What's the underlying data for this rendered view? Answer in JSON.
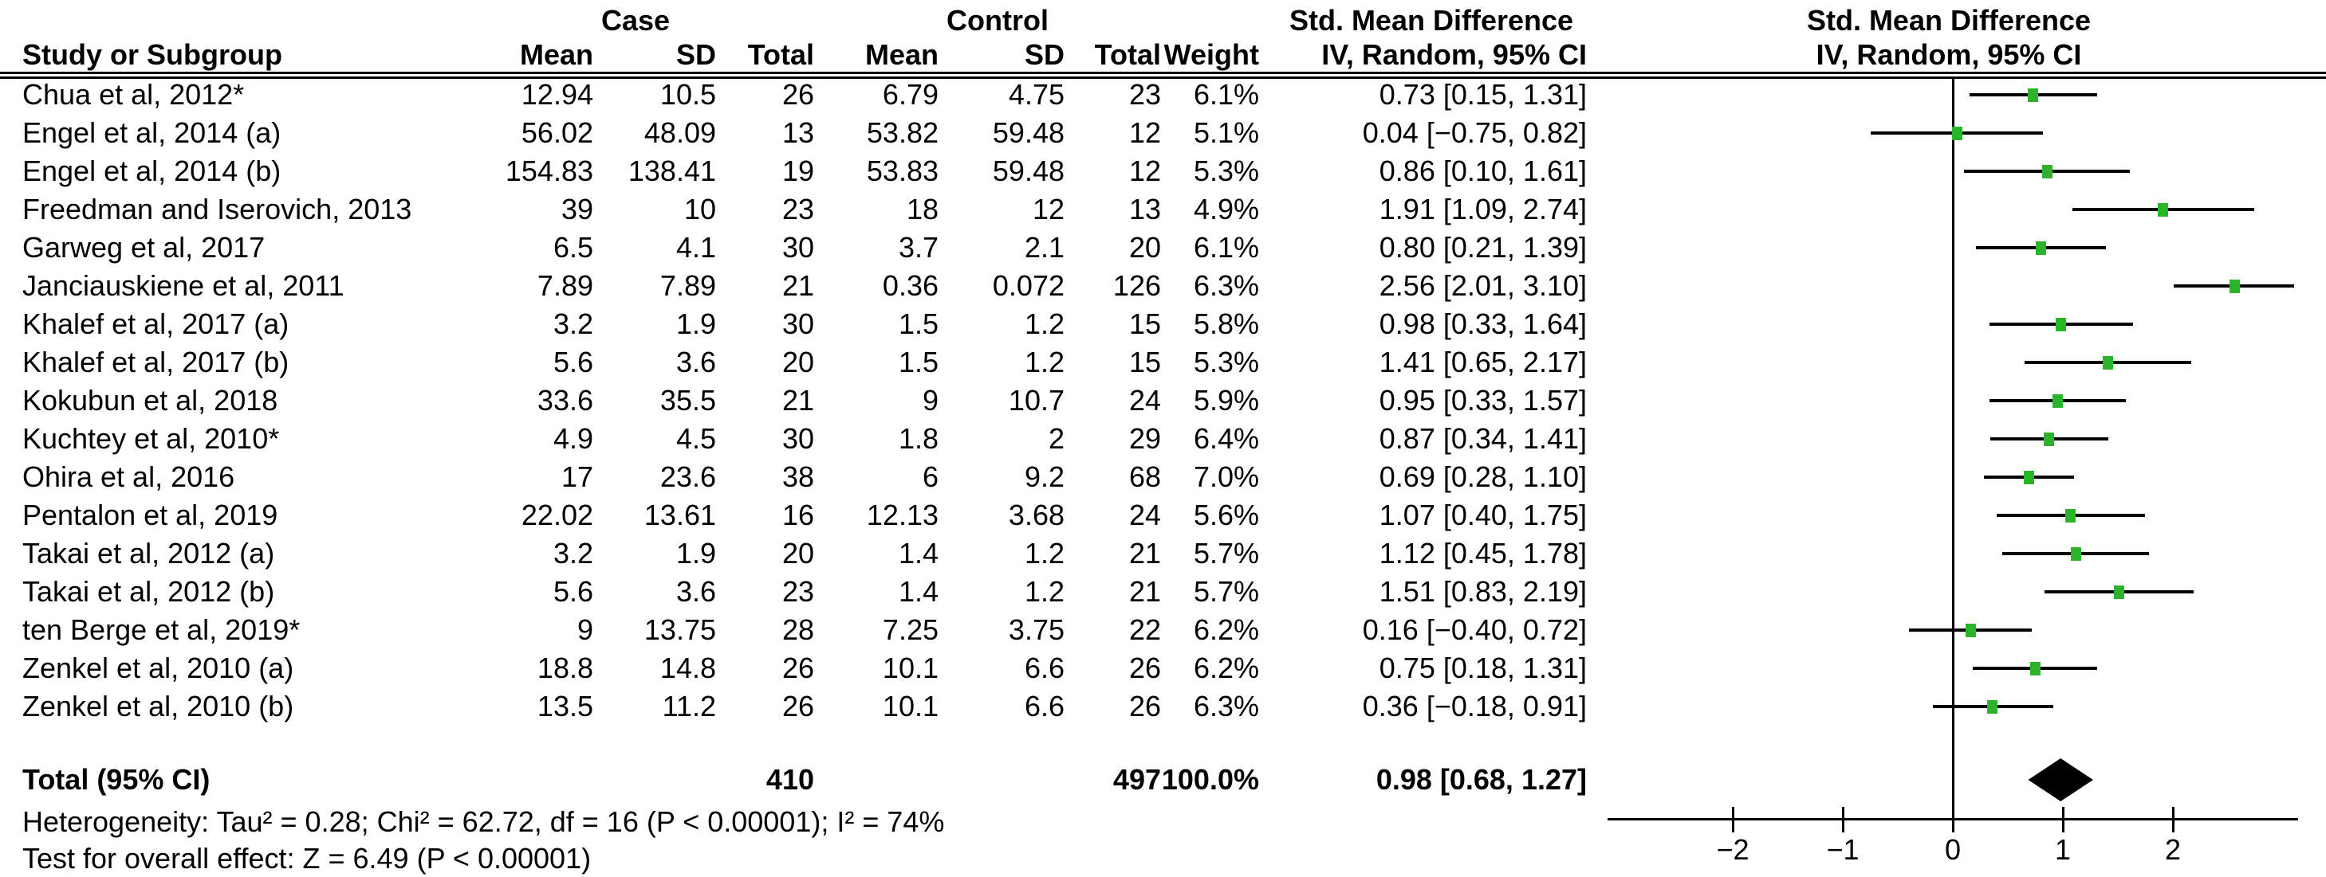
{
  "headers": {
    "group_case": "Case",
    "group_control": "Control",
    "smd_left": "Std. Mean Difference",
    "smd_right": "Std. Mean Difference",
    "study": "Study or Subgroup",
    "mean": "Mean",
    "sd": "SD",
    "total": "Total",
    "mean2": "Mean",
    "sd2": "SD",
    "total2": "Total",
    "weight": "Weight",
    "iv_left": "IV, Random, 95% CI",
    "iv_right": "IV, Random, 95% CI"
  },
  "chart_data": {
    "type": "forest",
    "effect_measure": "Std. Mean Difference",
    "model": "IV, Random, 95% CI",
    "axis": {
      "ticks": [
        -2,
        -1,
        0,
        1,
        2
      ],
      "tick_labels": [
        "−2",
        "−1",
        "0",
        "1",
        "2"
      ],
      "xmin": -3.14,
      "xmax": 3.14,
      "zero_line": 0
    },
    "marker_color": "#2bb32b",
    "ci_color": "#000000",
    "diamond_color": "#000000",
    "studies": [
      {
        "name": "Chua et al, 2012*",
        "case_mean": "12.94",
        "case_sd": "10.5",
        "case_total": "26",
        "control_mean": "6.79",
        "control_sd": "4.75",
        "control_total": "23",
        "weight": "6.1%",
        "smd": 0.73,
        "ci_low": 0.15,
        "ci_high": 1.31,
        "ci_text": "0.73 [0.15, 1.31]"
      },
      {
        "name": "Engel et al, 2014 (a)",
        "case_mean": "56.02",
        "case_sd": "48.09",
        "case_total": "13",
        "control_mean": "53.82",
        "control_sd": "59.48",
        "control_total": "12",
        "weight": "5.1%",
        "smd": 0.04,
        "ci_low": -0.75,
        "ci_high": 0.82,
        "ci_text": "0.04 [−0.75, 0.82]"
      },
      {
        "name": "Engel et al, 2014 (b)",
        "case_mean": "154.83",
        "case_sd": "138.41",
        "case_total": "19",
        "control_mean": "53.83",
        "control_sd": "59.48",
        "control_total": "12",
        "weight": "5.3%",
        "smd": 0.86,
        "ci_low": 0.1,
        "ci_high": 1.61,
        "ci_text": "0.86 [0.10, 1.61]"
      },
      {
        "name": "Freedman and Iserovich, 2013",
        "case_mean": "39",
        "case_sd": "10",
        "case_total": "23",
        "control_mean": "18",
        "control_sd": "12",
        "control_total": "13",
        "weight": "4.9%",
        "smd": 1.91,
        "ci_low": 1.09,
        "ci_high": 2.74,
        "ci_text": "1.91 [1.09, 2.74]"
      },
      {
        "name": "Garweg et al, 2017",
        "case_mean": "6.5",
        "case_sd": "4.1",
        "case_total": "30",
        "control_mean": "3.7",
        "control_sd": "2.1",
        "control_total": "20",
        "weight": "6.1%",
        "smd": 0.8,
        "ci_low": 0.21,
        "ci_high": 1.39,
        "ci_text": "0.80 [0.21, 1.39]"
      },
      {
        "name": "Janciauskiene et al, 2011",
        "case_mean": "7.89",
        "case_sd": "7.89",
        "case_total": "21",
        "control_mean": "0.36",
        "control_sd": "0.072",
        "control_total": "126",
        "weight": "6.3%",
        "smd": 2.56,
        "ci_low": 2.01,
        "ci_high": 3.1,
        "ci_text": "2.56 [2.01, 3.10]"
      },
      {
        "name": "Khalef et al, 2017 (a)",
        "case_mean": "3.2",
        "case_sd": "1.9",
        "case_total": "30",
        "control_mean": "1.5",
        "control_sd": "1.2",
        "control_total": "15",
        "weight": "5.8%",
        "smd": 0.98,
        "ci_low": 0.33,
        "ci_high": 1.64,
        "ci_text": "0.98 [0.33, 1.64]"
      },
      {
        "name": "Khalef et al, 2017 (b)",
        "case_mean": "5.6",
        "case_sd": "3.6",
        "case_total": "20",
        "control_mean": "1.5",
        "control_sd": "1.2",
        "control_total": "15",
        "weight": "5.3%",
        "smd": 1.41,
        "ci_low": 0.65,
        "ci_high": 2.17,
        "ci_text": "1.41 [0.65, 2.17]"
      },
      {
        "name": "Kokubun et al, 2018",
        "case_mean": "33.6",
        "case_sd": "35.5",
        "case_total": "21",
        "control_mean": "9",
        "control_sd": "10.7",
        "control_total": "24",
        "weight": "5.9%",
        "smd": 0.95,
        "ci_low": 0.33,
        "ci_high": 1.57,
        "ci_text": "0.95 [0.33, 1.57]"
      },
      {
        "name": "Kuchtey et al, 2010*",
        "case_mean": "4.9",
        "case_sd": "4.5",
        "case_total": "30",
        "control_mean": "1.8",
        "control_sd": "2",
        "control_total": "29",
        "weight": "6.4%",
        "smd": 0.87,
        "ci_low": 0.34,
        "ci_high": 1.41,
        "ci_text": "0.87 [0.34, 1.41]"
      },
      {
        "name": "Ohira et al, 2016",
        "case_mean": "17",
        "case_sd": "23.6",
        "case_total": "38",
        "control_mean": "6",
        "control_sd": "9.2",
        "control_total": "68",
        "weight": "7.0%",
        "smd": 0.69,
        "ci_low": 0.28,
        "ci_high": 1.1,
        "ci_text": "0.69 [0.28, 1.10]"
      },
      {
        "name": "Pentalon et al, 2019",
        "case_mean": "22.02",
        "case_sd": "13.61",
        "case_total": "16",
        "control_mean": "12.13",
        "control_sd": "3.68",
        "control_total": "24",
        "weight": "5.6%",
        "smd": 1.07,
        "ci_low": 0.4,
        "ci_high": 1.75,
        "ci_text": "1.07 [0.40, 1.75]"
      },
      {
        "name": "Takai et al, 2012 (a)",
        "case_mean": "3.2",
        "case_sd": "1.9",
        "case_total": "20",
        "control_mean": "1.4",
        "control_sd": "1.2",
        "control_total": "21",
        "weight": "5.7%",
        "smd": 1.12,
        "ci_low": 0.45,
        "ci_high": 1.78,
        "ci_text": "1.12 [0.45, 1.78]"
      },
      {
        "name": "Takai et al, 2012 (b)",
        "case_mean": "5.6",
        "case_sd": "3.6",
        "case_total": "23",
        "control_mean": "1.4",
        "control_sd": "1.2",
        "control_total": "21",
        "weight": "5.7%",
        "smd": 1.51,
        "ci_low": 0.83,
        "ci_high": 2.19,
        "ci_text": "1.51 [0.83, 2.19]"
      },
      {
        "name": "ten Berge et al, 2019*",
        "case_mean": "9",
        "case_sd": "13.75",
        "case_total": "28",
        "control_mean": "7.25",
        "control_sd": "3.75",
        "control_total": "22",
        "weight": "6.2%",
        "smd": 0.16,
        "ci_low": -0.4,
        "ci_high": 0.72,
        "ci_text": "0.16 [−0.40, 0.72]"
      },
      {
        "name": "Zenkel et al, 2010 (a)",
        "case_mean": "18.8",
        "case_sd": "14.8",
        "case_total": "26",
        "control_mean": "10.1",
        "control_sd": "6.6",
        "control_total": "26",
        "weight": "6.2%",
        "smd": 0.75,
        "ci_low": 0.18,
        "ci_high": 1.31,
        "ci_text": "0.75 [0.18, 1.31]"
      },
      {
        "name": "Zenkel et al, 2010 (b)",
        "case_mean": "13.5",
        "case_sd": "11.2",
        "case_total": "26",
        "control_mean": "10.1",
        "control_sd": "6.6",
        "control_total": "26",
        "weight": "6.3%",
        "smd": 0.36,
        "ci_low": -0.18,
        "ci_high": 0.91,
        "ci_text": "0.36 [−0.18, 0.91]"
      }
    ],
    "total": {
      "label": "Total (95% CI)",
      "case_total": "410",
      "control_total": "497",
      "weight": "100.0%",
      "smd": 0.98,
      "ci_low": 0.68,
      "ci_high": 1.27,
      "ci_text": "0.98 [0.68, 1.27]"
    },
    "footer": {
      "heterogeneity": "Heterogeneity: Tau² = 0.28; Chi² = 62.72, df = 16 (P < 0.00001); I² = 74%",
      "overall_effect": "Test for overall effect: Z = 6.49 (P < 0.00001)"
    }
  }
}
